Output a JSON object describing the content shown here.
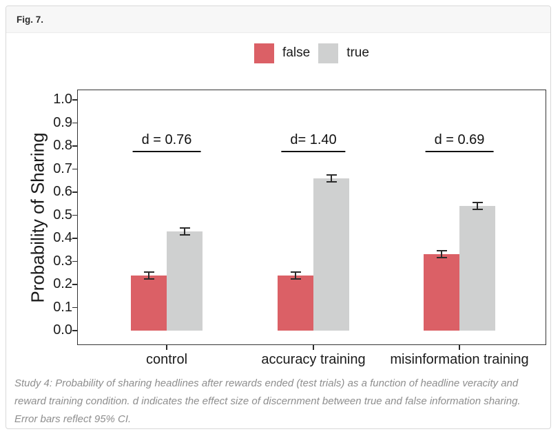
{
  "figure_label": "Fig. 7.",
  "colors": {
    "false_bar": "#DB6066",
    "true_bar": "#CFD0D0",
    "axis": "#2a2a2a",
    "error_bar": "#1a1a1a",
    "caption_text": "#8e8e8e"
  },
  "chart_data": {
    "type": "bar",
    "categories": [
      "control",
      "accuracy training",
      "misinformation training"
    ],
    "series": [
      {
        "name": "false",
        "color": "#DB6066",
        "values": [
          0.24,
          0.24,
          0.33
        ],
        "errors": [
          0.015,
          0.015,
          0.015
        ]
      },
      {
        "name": "true",
        "color": "#CFD0D0",
        "values": [
          0.43,
          0.66,
          0.54
        ],
        "errors": [
          0.015,
          0.015,
          0.015
        ]
      }
    ],
    "annotations": [
      {
        "category": "control",
        "text": "d = 0.76"
      },
      {
        "category": "accuracy training",
        "text": "d= 1.40"
      },
      {
        "category": "misinformation training",
        "text": "d = 0.69"
      }
    ],
    "title": "",
    "xlabel": "",
    "ylabel": "Probability of Sharing",
    "ylim": [
      0.0,
      1.0
    ],
    "yticks": [
      0.0,
      0.1,
      0.2,
      0.3,
      0.4,
      0.5,
      0.6,
      0.7,
      0.8,
      0.9,
      1.0
    ],
    "legend_position": "top",
    "grid": false,
    "error_bars_note": "95% CI"
  },
  "caption": "Study 4: Probability of sharing headlines after rewards ended (test trials) as a function of headline veracity and reward training condition. d indicates the effect size of discernment between true and false information sharing. Error bars reflect 95% CI."
}
